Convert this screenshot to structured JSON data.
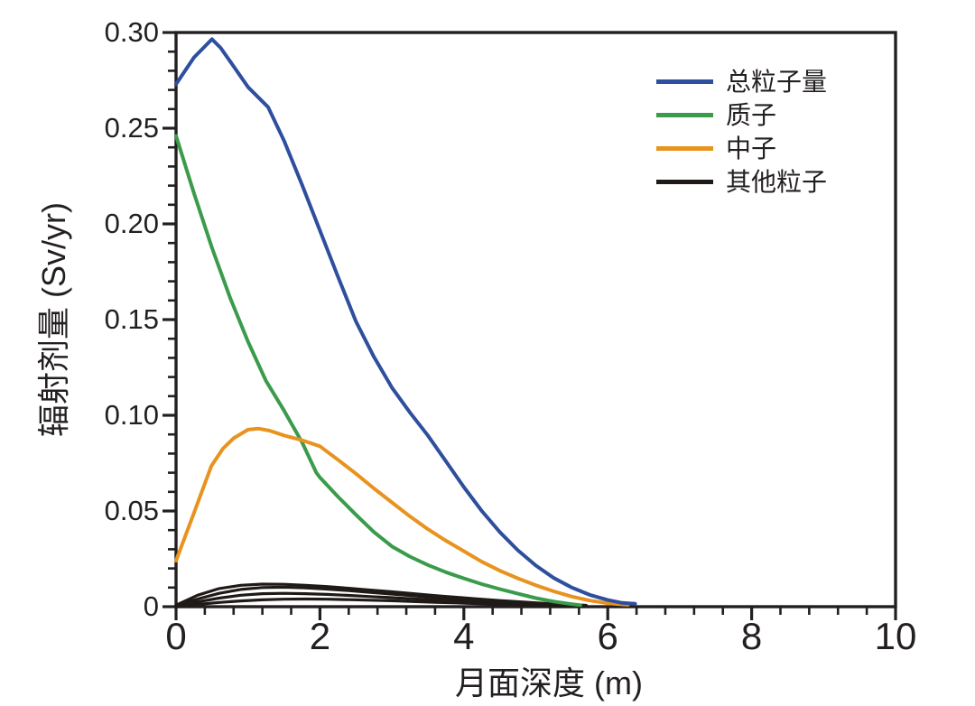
{
  "figure": {
    "background": "#ffffff",
    "axis_color": "#231f20",
    "text_color": "#231f20"
  },
  "chart_data": {
    "type": "line",
    "title": "",
    "xlabel": "月面深度 (m)",
    "ylabel": "辐射剂量 (Sv/yr)",
    "xlim": [
      0,
      10
    ],
    "ylim": [
      0,
      0.3
    ],
    "grid": false,
    "legend_position": "top-right",
    "x_major_ticks": [
      0,
      2,
      4,
      6,
      8,
      10
    ],
    "x_tick_labels": [
      "0",
      "2",
      "4",
      "6",
      "8",
      "10"
    ],
    "x_minor_step": 0.4,
    "y_major_ticks": [
      0,
      0.05,
      0.1,
      0.15,
      0.2,
      0.25,
      0.3
    ],
    "y_tick_labels": [
      "0",
      "0.05",
      "0.10",
      "0.15",
      "0.20",
      "0.25",
      "0.30"
    ],
    "y_minor_step": 0.01,
    "series": [
      {
        "name": "总粒子量",
        "color": "#2e4f9e",
        "curves": [
          [
            [
              0,
              0.273
            ],
            [
              0.25,
              0.287
            ],
            [
              0.5,
              0.2965
            ],
            [
              0.62,
              0.292
            ],
            [
              0.75,
              0.285
            ],
            [
              1.0,
              0.2715
            ],
            [
              1.28,
              0.261
            ],
            [
              1.5,
              0.2435
            ],
            [
              1.75,
              0.2205
            ],
            [
              2.0,
              0.1965
            ],
            [
              2.25,
              0.1725
            ],
            [
              2.5,
              0.149
            ],
            [
              2.75,
              0.1305
            ],
            [
              3.0,
              0.1145
            ],
            [
              3.25,
              0.1015
            ],
            [
              3.5,
              0.0895
            ],
            [
              3.75,
              0.076
            ],
            [
              4.0,
              0.0625
            ],
            [
              4.25,
              0.05
            ],
            [
              4.5,
              0.039
            ],
            [
              4.75,
              0.0295
            ],
            [
              5.0,
              0.0215
            ],
            [
              5.25,
              0.015
            ],
            [
              5.5,
              0.01
            ],
            [
              5.75,
              0.0062
            ],
            [
              6.0,
              0.0035
            ],
            [
              6.2,
              0.002
            ],
            [
              6.38,
              0.0015
            ]
          ]
        ]
      },
      {
        "name": "质子",
        "color": "#3a9b4b",
        "curves": [
          [
            [
              0,
              0.246
            ],
            [
              0.25,
              0.216
            ],
            [
              0.5,
              0.1875
            ],
            [
              0.75,
              0.1615
            ],
            [
              1.0,
              0.1385
            ],
            [
              1.25,
              0.118
            ],
            [
              1.5,
              0.1025
            ],
            [
              1.75,
              0.086
            ],
            [
              1.95,
              0.07
            ],
            [
              2.0,
              0.0675
            ],
            [
              2.25,
              0.0575
            ],
            [
              2.5,
              0.048
            ],
            [
              2.75,
              0.039
            ],
            [
              3.0,
              0.0315
            ],
            [
              3.25,
              0.0262
            ],
            [
              3.5,
              0.0218
            ],
            [
              3.75,
              0.018
            ],
            [
              4.0,
              0.0148
            ],
            [
              4.25,
              0.0118
            ],
            [
              4.5,
              0.0092
            ],
            [
              4.75,
              0.0068
            ],
            [
              5.0,
              0.0045
            ],
            [
              5.25,
              0.0027
            ],
            [
              5.5,
              0.0013
            ],
            [
              5.62,
              0.0008
            ]
          ]
        ]
      },
      {
        "name": "中子",
        "color": "#e8931f",
        "curves": [
          [
            [
              0,
              0.024
            ],
            [
              0.25,
              0.049
            ],
            [
              0.49,
              0.0735
            ],
            [
              0.65,
              0.0825
            ],
            [
              0.8,
              0.088
            ],
            [
              1.0,
              0.0925
            ],
            [
              1.15,
              0.093
            ],
            [
              1.3,
              0.092
            ],
            [
              1.5,
              0.0895
            ],
            [
              1.75,
              0.087
            ],
            [
              2.0,
              0.0838
            ],
            [
              2.25,
              0.0768
            ],
            [
              2.5,
              0.0695
            ],
            [
              2.75,
              0.0618
            ],
            [
              3.0,
              0.0545
            ],
            [
              3.25,
              0.0472
            ],
            [
              3.5,
              0.0405
            ],
            [
              3.75,
              0.0345
            ],
            [
              4.0,
              0.029
            ],
            [
              4.25,
              0.0235
            ],
            [
              4.5,
              0.0188
            ],
            [
              4.75,
              0.0148
            ],
            [
              5.0,
              0.0112
            ],
            [
              5.25,
              0.008
            ],
            [
              5.5,
              0.0053
            ],
            [
              5.75,
              0.0032
            ],
            [
              6.0,
              0.0018
            ],
            [
              6.28,
              0.001
            ]
          ]
        ]
      },
      {
        "name": "其他粒子",
        "color": "#1f1a17",
        "curves": [
          [
            [
              0,
              0.0008
            ],
            [
              0.3,
              0.006
            ],
            [
              0.6,
              0.0095
            ],
            [
              0.9,
              0.0112
            ],
            [
              1.2,
              0.0118
            ],
            [
              1.5,
              0.0117
            ],
            [
              1.8,
              0.0112
            ],
            [
              2.1,
              0.0105
            ],
            [
              2.4,
              0.0096
            ],
            [
              2.7,
              0.0087
            ],
            [
              3.0,
              0.0078
            ],
            [
              3.3,
              0.0068
            ],
            [
              3.6,
              0.0058
            ],
            [
              3.9,
              0.0049
            ],
            [
              4.2,
              0.004
            ],
            [
              4.5,
              0.0032
            ],
            [
              4.8,
              0.0025
            ],
            [
              5.1,
              0.0018
            ],
            [
              5.4,
              0.0012
            ],
            [
              5.7,
              0.0007
            ]
          ],
          [
            [
              0,
              0.0005
            ],
            [
              0.3,
              0.004
            ],
            [
              0.6,
              0.007
            ],
            [
              0.9,
              0.009
            ],
            [
              1.2,
              0.01
            ],
            [
              1.5,
              0.0102
            ],
            [
              1.8,
              0.0098
            ],
            [
              2.1,
              0.0092
            ],
            [
              2.4,
              0.0084
            ],
            [
              2.7,
              0.0075
            ],
            [
              3.0,
              0.0066
            ],
            [
              3.3,
              0.0057
            ],
            [
              3.6,
              0.0048
            ],
            [
              3.9,
              0.004
            ],
            [
              4.2,
              0.0033
            ],
            [
              4.5,
              0.0026
            ],
            [
              4.8,
              0.002
            ],
            [
              5.1,
              0.0014
            ],
            [
              5.4,
              0.0009
            ],
            [
              5.7,
              0.0005
            ]
          ],
          [
            [
              0,
              0.0003
            ],
            [
              0.3,
              0.0025
            ],
            [
              0.6,
              0.0045
            ],
            [
              0.9,
              0.006
            ],
            [
              1.2,
              0.0068
            ],
            [
              1.5,
              0.007
            ],
            [
              1.8,
              0.0068
            ],
            [
              2.1,
              0.0064
            ],
            [
              2.4,
              0.0059
            ],
            [
              2.7,
              0.0053
            ],
            [
              3.0,
              0.0047
            ],
            [
              3.3,
              0.0041
            ],
            [
              3.6,
              0.0035
            ],
            [
              3.9,
              0.0029
            ],
            [
              4.2,
              0.0024
            ],
            [
              4.5,
              0.0019
            ],
            [
              4.8,
              0.0014
            ],
            [
              5.1,
              0.001
            ],
            [
              5.4,
              0.0006
            ],
            [
              5.7,
              0.0003
            ]
          ],
          [
            [
              0,
              0.0002
            ],
            [
              0.3,
              0.0012
            ],
            [
              0.6,
              0.0022
            ],
            [
              0.9,
              0.003
            ],
            [
              1.2,
              0.0036
            ],
            [
              1.5,
              0.0039
            ],
            [
              1.8,
              0.004
            ],
            [
              2.1,
              0.0039
            ],
            [
              2.4,
              0.0037
            ],
            [
              2.7,
              0.0034
            ],
            [
              3.0,
              0.0031
            ],
            [
              3.3,
              0.0027
            ],
            [
              3.6,
              0.0023
            ],
            [
              3.9,
              0.002
            ],
            [
              4.2,
              0.0016
            ],
            [
              4.5,
              0.0013
            ],
            [
              4.8,
              0.001
            ],
            [
              5.1,
              0.0007
            ],
            [
              5.4,
              0.0004
            ],
            [
              5.7,
              0.0002
            ]
          ]
        ]
      }
    ],
    "legend": {
      "entries": [
        {
          "label": "总粒子量",
          "color": "#2e4f9e"
        },
        {
          "label": "质子",
          "color": "#3a9b4b"
        },
        {
          "label": "中子",
          "color": "#e8931f"
        },
        {
          "label": "其他粒子",
          "color": "#1f1a17"
        }
      ]
    }
  }
}
